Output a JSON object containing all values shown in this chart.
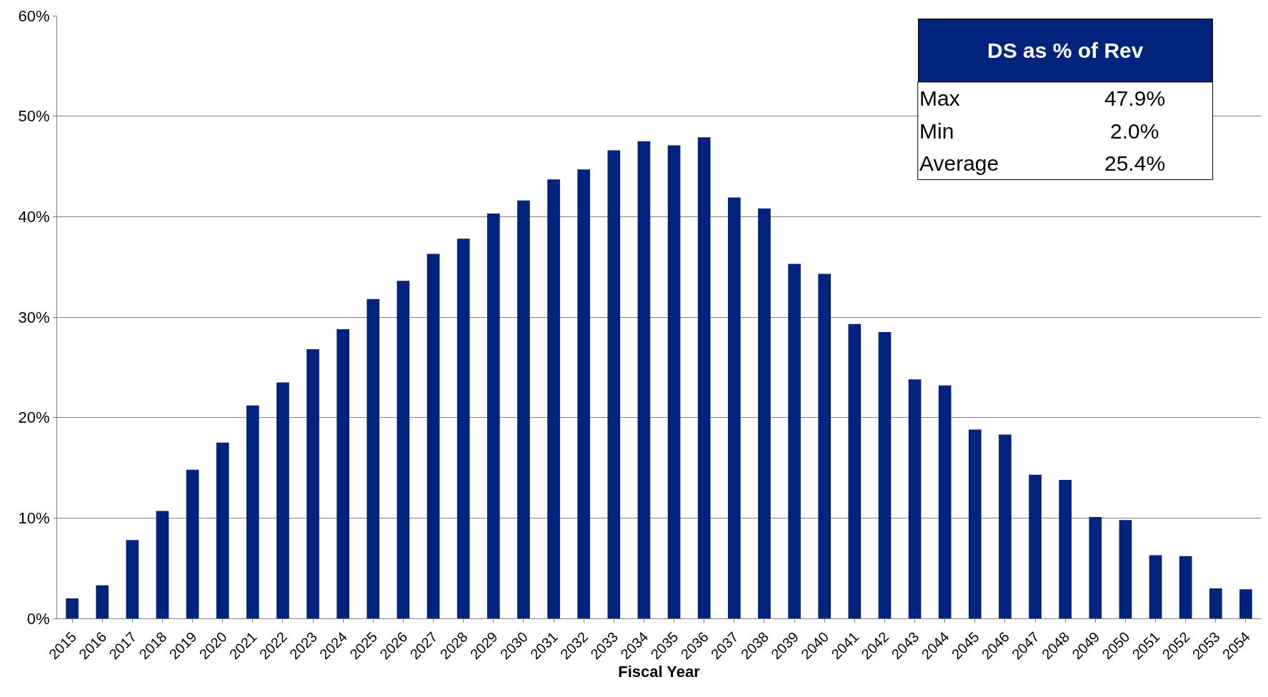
{
  "chart_data": {
    "type": "bar",
    "xlabel": "Fiscal Year",
    "categories": [
      "2015",
      "2016",
      "2017",
      "2018",
      "2019",
      "2020",
      "2021",
      "2022",
      "2023",
      "2024",
      "2025",
      "2026",
      "2027",
      "2028",
      "2029",
      "2030",
      "2031",
      "2032",
      "2033",
      "2034",
      "2035",
      "2036",
      "2037",
      "2038",
      "2039",
      "2040",
      "2041",
      "2042",
      "2043",
      "2044",
      "2045",
      "2046",
      "2047",
      "2048",
      "2049",
      "2050",
      "2051",
      "2052",
      "2053",
      "2054"
    ],
    "values": [
      2.0,
      3.3,
      7.8,
      10.7,
      14.8,
      17.5,
      21.2,
      23.5,
      26.8,
      28.8,
      31.8,
      33.6,
      36.3,
      37.8,
      40.3,
      41.6,
      43.7,
      44.7,
      46.6,
      47.5,
      47.1,
      47.9,
      41.9,
      40.8,
      35.3,
      34.3,
      29.3,
      28.5,
      23.8,
      23.2,
      18.8,
      18.3,
      14.3,
      13.8,
      10.1,
      9.8,
      6.3,
      6.2,
      3.0,
      2.9
    ],
    "color": "#00247d",
    "ylim": [
      0,
      60
    ],
    "yticks": [
      {
        "value": 0,
        "label": "0%"
      },
      {
        "value": 10,
        "label": "10%"
      },
      {
        "value": 20,
        "label": "20%"
      },
      {
        "value": 30,
        "label": "30%"
      },
      {
        "value": 40,
        "label": "40%"
      },
      {
        "value": 50,
        "label": "50%"
      },
      {
        "value": 60,
        "label": "60%"
      }
    ],
    "grid": "y",
    "annotations": [
      "DS as % of Rev",
      "Max",
      "47.9%",
      "Min",
      "2.0%",
      "Average",
      "25.4%"
    ]
  }
}
